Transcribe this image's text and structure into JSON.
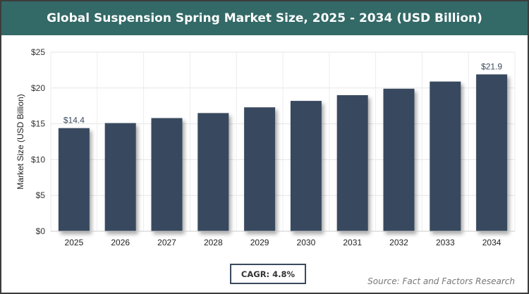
{
  "chart_data": {
    "type": "bar",
    "title": "Global Suspension Spring Market Size, 2025 - 2034 (USD Billion)",
    "ylabel": "Market Size (USD Billion)",
    "xlabel": "",
    "categories": [
      "2025",
      "2026",
      "2027",
      "2028",
      "2029",
      "2030",
      "2031",
      "2032",
      "2033",
      "2034"
    ],
    "values": [
      14.4,
      15.1,
      15.8,
      16.5,
      17.3,
      18.2,
      19.0,
      19.9,
      20.9,
      21.9
    ],
    "data_labels": {
      "0": "$14.4",
      "9": "$21.9"
    },
    "ylim": [
      0,
      25
    ],
    "yticks": [
      "$0",
      "$5",
      "$10",
      "$15",
      "$20",
      "$25"
    ],
    "grid": true,
    "bar_color": "#374a5f"
  },
  "cagr": "CAGR: 4.8%",
  "source": "Source: Fact and Factors Research",
  "header_color": "#336966"
}
